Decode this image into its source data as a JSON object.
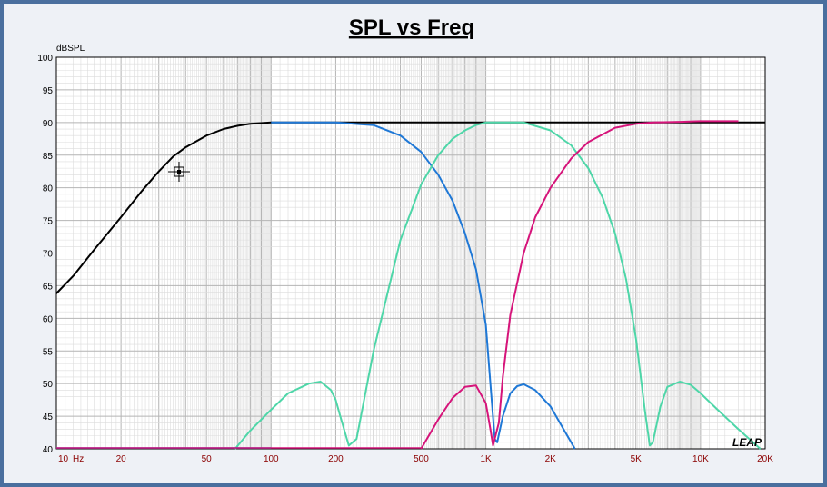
{
  "chart_data": {
    "type": "line",
    "title": "SPL vs Freq",
    "ylabel": "dBSPL",
    "x_unit": "Hz",
    "x_scale": "log",
    "xlim": [
      10,
      20000
    ],
    "ylim": [
      40,
      100
    ],
    "y_ticks": [
      "100",
      "95",
      "90",
      "85",
      "80",
      "75",
      "70",
      "65",
      "60",
      "55",
      "50",
      "45",
      "40"
    ],
    "x_ticks": [
      {
        "value": 10,
        "label": "10"
      },
      {
        "value": 20,
        "label": "20"
      },
      {
        "value": 50,
        "label": "50"
      },
      {
        "value": 100,
        "label": "100"
      },
      {
        "value": 200,
        "label": "200"
      },
      {
        "value": 500,
        "label": "500"
      },
      {
        "value": 1000,
        "label": "1K"
      },
      {
        "value": 2000,
        "label": "2K"
      },
      {
        "value": 5000,
        "label": "5K"
      },
      {
        "value": 10000,
        "label": "10K"
      },
      {
        "value": 20000,
        "label": "20K"
      }
    ],
    "grid": true,
    "logo": "LEAP",
    "colors": {
      "total": "#000000",
      "woofer": "#1f78d6",
      "midrange": "#4ed6a8",
      "tweeter": "#d6147a",
      "axis_labels": "#8b0000",
      "frame": "#4a6f9e",
      "grid": "#b4b4b4"
    },
    "series": [
      {
        "key": "total",
        "x": [
          10,
          12,
          15,
          20,
          25,
          30,
          35,
          40,
          50,
          60,
          70,
          80,
          100,
          150,
          200,
          500,
          1000,
          2000,
          5000,
          10000,
          20000
        ],
        "y": [
          63.8,
          66.5,
          70.5,
          75.5,
          79.5,
          82.5,
          84.8,
          86.2,
          88.0,
          89.0,
          89.5,
          89.8,
          90.0,
          90.0,
          90.0,
          90.0,
          90.0,
          90.0,
          90.0,
          90.0,
          90.0
        ]
      },
      {
        "key": "woofer",
        "x": [
          100,
          150,
          200,
          300,
          400,
          500,
          600,
          700,
          800,
          900,
          1000,
          1050,
          1100,
          1130,
          1200,
          1300,
          1400,
          1500,
          1700,
          2000,
          2300,
          2600
        ],
        "y": [
          90.0,
          90.0,
          90.0,
          89.6,
          88.0,
          85.5,
          82.0,
          78.0,
          73.0,
          67.5,
          59.0,
          50.0,
          41.5,
          41.0,
          45.0,
          48.5,
          49.6,
          49.9,
          49.0,
          46.5,
          43.0,
          40.0
        ]
      },
      {
        "key": "midrange",
        "x": [
          68,
          80,
          100,
          120,
          150,
          170,
          190,
          200,
          210,
          230,
          250,
          300,
          400,
          500,
          600,
          700,
          800,
          900,
          1000,
          1200,
          1500,
          2000,
          2500,
          3000,
          3500,
          4000,
          4500,
          5000,
          5500,
          5800,
          6000,
          6500,
          7000,
          8000,
          9000,
          10000,
          12000,
          15000,
          19000
        ],
        "y": [
          40.0,
          42.8,
          46.0,
          48.5,
          50.0,
          50.3,
          49.0,
          47.5,
          45.0,
          40.5,
          41.5,
          55.0,
          72.0,
          80.5,
          85.0,
          87.5,
          88.8,
          89.6,
          90.0,
          90.0,
          90.0,
          88.8,
          86.5,
          83.0,
          78.5,
          73.0,
          66.0,
          57.0,
          46.0,
          40.5,
          41.0,
          46.5,
          49.5,
          50.3,
          49.8,
          48.5,
          46.0,
          43.0,
          40.0
        ]
      },
      {
        "key": "tweeter",
        "x": [
          500,
          600,
          700,
          800,
          900,
          1000,
          1050,
          1080,
          1150,
          1200,
          1300,
          1500,
          1700,
          2000,
          2500,
          3000,
          4000,
          5000,
          6000,
          8000,
          10000,
          15000
        ],
        "y": [
          40.0,
          44.5,
          47.8,
          49.5,
          49.7,
          47.0,
          43.0,
          40.5,
          44.0,
          51.0,
          60.5,
          70.0,
          75.5,
          80.0,
          84.5,
          87.0,
          89.2,
          89.8,
          90.0,
          90.1,
          90.2,
          90.2
        ]
      }
    ]
  }
}
